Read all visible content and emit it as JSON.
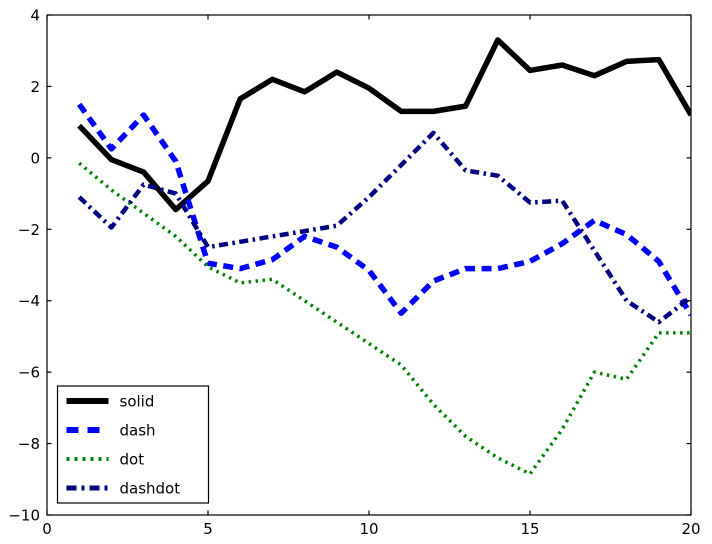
{
  "chart_data": {
    "type": "line",
    "title": "",
    "xlabel": "",
    "ylabel": "",
    "xlim": [
      0,
      20
    ],
    "ylim": [
      -10,
      4
    ],
    "x_ticks": [
      0,
      5,
      10,
      15,
      20
    ],
    "x_tick_labels": [
      "0",
      "5",
      "10",
      "15",
      "20"
    ],
    "y_ticks": [
      4,
      2,
      0,
      -2,
      -4,
      -6,
      -8,
      -10
    ],
    "y_tick_labels": [
      "4",
      "2",
      "0",
      "−2",
      "−4",
      "−6",
      "−8",
      "−10"
    ],
    "grid": false,
    "legend_position": "lower-left",
    "x": [
      1,
      2,
      3,
      4,
      5,
      6,
      7,
      8,
      9,
      10,
      11,
      12,
      13,
      14,
      15,
      16,
      17,
      18,
      19,
      20
    ],
    "series": [
      {
        "name": "solid",
        "style": "solid",
        "color": "#000000",
        "linewidth": 5.5,
        "values": [
          0.9,
          -0.05,
          -0.4,
          -1.45,
          -0.65,
          1.65,
          2.2,
          1.85,
          2.4,
          1.95,
          1.3,
          1.3,
          1.45,
          3.3,
          2.45,
          2.6,
          2.3,
          2.7,
          2.75,
          1.2
        ]
      },
      {
        "name": "dash",
        "style": "dash",
        "color": "#0000ff",
        "linewidth": 5.5,
        "values": [
          1.5,
          0.25,
          1.2,
          -0.1,
          -2.95,
          -3.1,
          -2.85,
          -2.2,
          -2.5,
          -3.15,
          -4.35,
          -3.45,
          -3.1,
          -3.1,
          -2.9,
          -2.4,
          -1.75,
          -2.15,
          -2.9,
          -4.4
        ]
      },
      {
        "name": "dot",
        "style": "dot",
        "color": "#008000",
        "linewidth": 3.5,
        "values": [
          -0.15,
          -0.9,
          -1.55,
          -2.2,
          -3.05,
          -3.5,
          -3.4,
          -4.0,
          -4.6,
          -5.2,
          -5.8,
          -6.9,
          -7.8,
          -8.4,
          -8.85,
          -7.6,
          -6.0,
          -6.2,
          -4.9,
          -4.9
        ]
      },
      {
        "name": "dashdot",
        "style": "dashdot",
        "color": "#000080",
        "linewidth": 4.5,
        "values": [
          -1.1,
          -1.95,
          -0.75,
          -1.0,
          -2.5,
          -2.35,
          -2.2,
          -2.05,
          -1.9,
          -1.1,
          -0.2,
          0.7,
          -0.35,
          -0.5,
          -1.25,
          -1.2,
          -2.6,
          -4.0,
          -4.6,
          -3.9
        ]
      }
    ],
    "legend_labels": [
      "solid",
      "dash",
      "dot",
      "dashdot"
    ]
  }
}
